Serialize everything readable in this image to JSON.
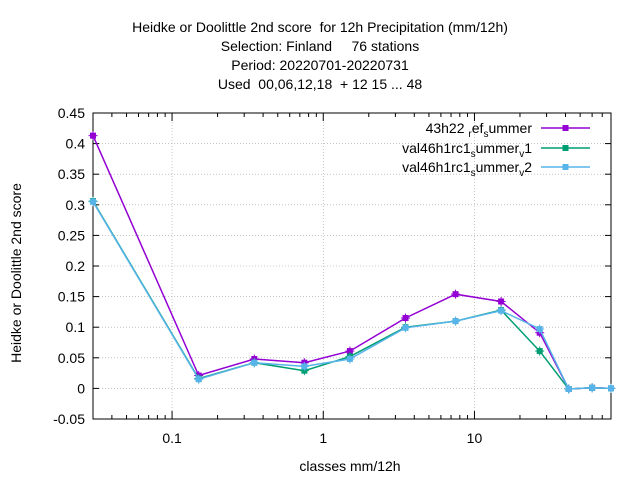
{
  "chart_data": {
    "type": "line",
    "title_lines": [
      "Heidke or Doolittle 2nd score  for 12h Precipitation (mm/12h)",
      "Selection: Finland     76 stations",
      "Period: 20220701-20220731",
      "Used  00,06,12,18  + 12 15 ... 48"
    ],
    "xlabel": "classes mm/12h",
    "ylabel": "Heidke or Doolittle 2nd score",
    "x_scale": "log",
    "xlim": [
      0.03,
      80
    ],
    "ylim": [
      -0.05,
      0.45
    ],
    "x_ticks": [
      0.1,
      1,
      10
    ],
    "x_tick_labels": [
      "0.1",
      "1",
      "10"
    ],
    "y_ticks": [
      -0.05,
      0,
      0.05,
      0.1,
      0.15,
      0.2,
      0.25,
      0.3,
      0.35,
      0.4,
      0.45
    ],
    "y_tick_labels": [
      "-0.05",
      "0",
      "0.05",
      "0.1",
      "0.15",
      "0.2",
      "0.25",
      "0.3",
      "0.35",
      "0.4",
      "0.45"
    ],
    "grid": true,
    "legend_position": "top-right",
    "x": [
      0.03,
      0.15,
      0.35,
      0.75,
      1.5,
      3.5,
      7.5,
      15,
      27,
      42,
      60,
      80
    ],
    "series": [
      {
        "name": "43h22_ref_summer",
        "legend_parts": [
          [
            "43h22 ",
            ""
          ],
          [
            "r",
            "sub"
          ],
          [
            "ef",
            ""
          ],
          [
            "s",
            "sub"
          ],
          [
            "ummer",
            ""
          ]
        ],
        "color": "#9400d3",
        "values": [
          0.413,
          0.021,
          0.048,
          0.042,
          0.061,
          0.115,
          0.154,
          0.142,
          0.091,
          -0.001,
          0.001,
          0.0
        ]
      },
      {
        "name": "val46h1rc1_summer_v1",
        "legend_parts": [
          [
            "val46h1rc1",
            ""
          ],
          [
            "s",
            "sub"
          ],
          [
            "ummer",
            ""
          ],
          [
            "v",
            "sub"
          ],
          [
            "1",
            ""
          ]
        ],
        "color": "#009e73",
        "values": [
          0.306,
          0.016,
          0.042,
          0.029,
          0.052,
          0.1,
          0.11,
          0.128,
          0.061,
          -0.001,
          0.001,
          0.0
        ]
      },
      {
        "name": "val46h1rc1_summer_v2",
        "legend_parts": [
          [
            "val46h1rc1",
            ""
          ],
          [
            "s",
            "sub"
          ],
          [
            "ummer",
            ""
          ],
          [
            "v",
            "sub"
          ],
          [
            "2",
            ""
          ]
        ],
        "color": "#56b4e9",
        "values": [
          0.305,
          0.015,
          0.042,
          0.036,
          0.048,
          0.099,
          0.11,
          0.127,
          0.097,
          -0.001,
          0.001,
          0.0
        ]
      }
    ]
  }
}
